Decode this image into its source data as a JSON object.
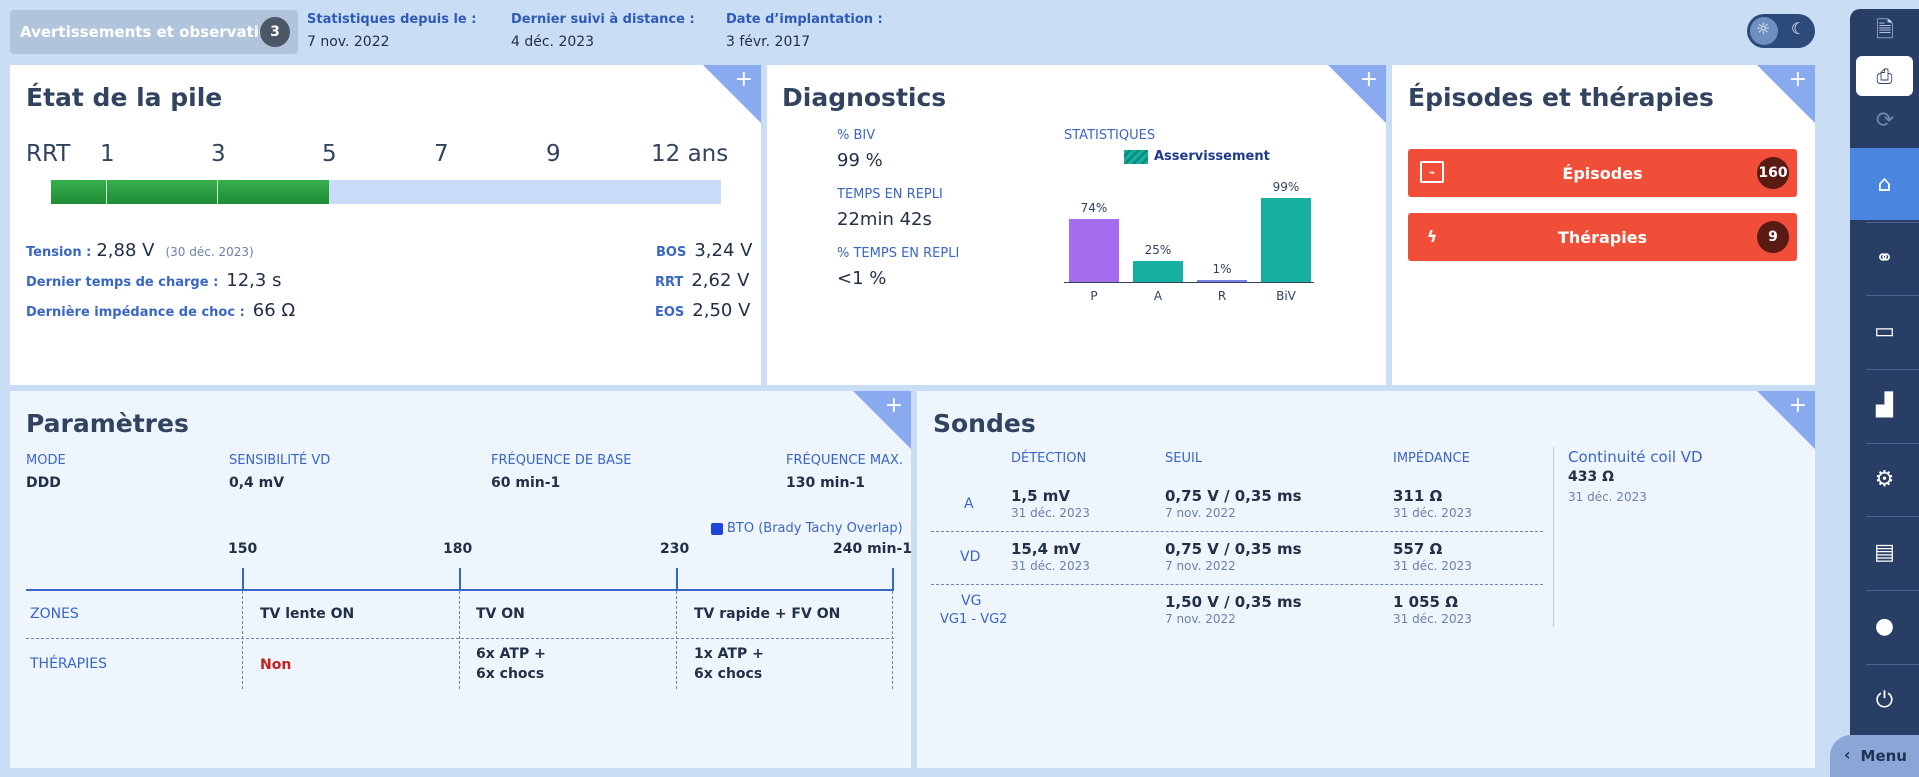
{
  "header": {
    "warnings_label": "Avertissements et observations",
    "warnings_count": "3",
    "stats_since_label": "Statistiques depuis le :",
    "stats_since_value": "7 nov. 2022",
    "last_remote_label": "Dernier suivi à distance :",
    "last_remote_value": "4 déc. 2023",
    "implant_label": "Date d’implantation :",
    "implant_value": "3 févr. 2017"
  },
  "battery": {
    "title": "État de la pile",
    "scale": [
      "RRT",
      "1",
      "3",
      "5",
      "7",
      "9",
      "12 ans"
    ],
    "remaining_fraction": 0.415,
    "tension_label": "Tension :",
    "tension_value": "2,88 V",
    "tension_date": "(30 déc. 2023)",
    "charge_label": "Dernier temps de charge :",
    "charge_value": "12,3 s",
    "impedance_label": "Dernière impédance de choc :",
    "impedance_value": "66 Ω",
    "bos_label": "BOS",
    "bos_value": "3,24 V",
    "rrt_label": "RRT",
    "rrt_value": "2,62 V",
    "eos_label": "EOS",
    "eos_value": "2,50 V"
  },
  "diagnostics": {
    "title": "Diagnostics",
    "biv_label": "% BIV",
    "biv_value": "99 %",
    "fallback_time_label": "TEMPS EN REPLI",
    "fallback_time_value": "22min 42s",
    "fallback_pct_label": "% TEMPS EN REPLI",
    "fallback_pct_value": "<1 %",
    "stats_label": "STATISTIQUES",
    "legend_label": "Asservissement"
  },
  "chart_data": {
    "type": "bar",
    "categories": [
      "P",
      "A",
      "R",
      "BiV"
    ],
    "values": [
      74,
      25,
      1,
      99
    ],
    "data_labels": [
      "74%",
      "25%",
      "1%",
      "99%"
    ],
    "colors": [
      "#a56cf0",
      "#15b0a0",
      "#7a7fe0",
      "#15b0a0"
    ],
    "ylim": [
      0,
      100
    ]
  },
  "episodes": {
    "title": "Épisodes et thérapies",
    "episodes_label": "Épisodes",
    "episodes_count": "160",
    "therapies_label": "Thérapies",
    "therapies_count": "9"
  },
  "parameters": {
    "title": "Paramètres",
    "mode_label": "MODE",
    "mode_value": "DDD",
    "sens_label": "SENSIBILITÉ VD",
    "sens_value": "0,4 mV",
    "base_label": "FRÉQUENCE DE BASE",
    "base_value": "60 min-1",
    "max_label": "FRÉQUENCE MAX.",
    "max_value": "130 min-1",
    "bto_label": "BTO (Brady Tachy Overlap)",
    "ticks": [
      "150",
      "180",
      "230",
      "240 min-1"
    ],
    "zones_label": "ZONES",
    "zones": [
      "TV lente ON",
      "TV ON",
      "TV rapide + FV ON"
    ],
    "therapies_label": "THÉRAPIES",
    "therapy_1": "Non",
    "therapy_2a": "6x ATP  +",
    "therapy_2b": "6x chocs",
    "therapy_3a": "1x ATP  +",
    "therapy_3b": "6x chocs"
  },
  "leads": {
    "title": "Sondes",
    "col_detection": "DÉTECTION",
    "col_threshold": "SEUIL",
    "col_impedance": "IMPÉDANCE",
    "rows": [
      {
        "name": "A",
        "name2": "",
        "det": "1,5 mV",
        "det_date": "31 déc. 2023",
        "thr": "0,75 V / 0,35 ms",
        "thr_date": "7 nov. 2022",
        "imp": "311 Ω",
        "imp_date": "31 déc. 2023"
      },
      {
        "name": "VD",
        "name2": "",
        "det": "15,4 mV",
        "det_date": "31 déc. 2023",
        "thr": "0,75 V / 0,35 ms",
        "thr_date": "7 nov. 2022",
        "imp": "557 Ω",
        "imp_date": "31 déc. 2023"
      },
      {
        "name": "VG",
        "name2": "VG1 - VG2",
        "det": "",
        "det_date": "",
        "thr": "1,50 V / 0,35 ms",
        "thr_date": "7 nov. 2022",
        "imp": "1 055 Ω",
        "imp_date": "31 déc. 2023"
      }
    ],
    "coil_label": "Continuité coil VD",
    "coil_value": "433 Ω",
    "coil_date": "31 déc. 2023"
  },
  "sidebar": {
    "menu_label": "Menu",
    "icons": [
      "document-icon",
      "print-icon",
      "sync-icon",
      "home-icon",
      "transmission-icon",
      "monitor-icon",
      "chart-icon",
      "settings-icon",
      "report-icon",
      "user-icon",
      "power-icon"
    ]
  }
}
